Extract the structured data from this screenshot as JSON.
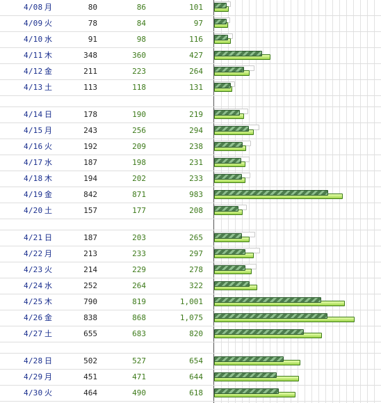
{
  "groups": [
    [
      {
        "date": "4/08",
        "dow": "月",
        "v1": "80",
        "v2": "86",
        "v3": "101"
      },
      {
        "date": "4/09",
        "dow": "火",
        "v1": "78",
        "v2": "84",
        "v3": "97"
      },
      {
        "date": "4/10",
        "dow": "水",
        "v1": "91",
        "v2": "98",
        "v3": "116"
      },
      {
        "date": "4/11",
        "dow": "木",
        "v1": "348",
        "v2": "360",
        "v3": "427"
      },
      {
        "date": "4/12",
        "dow": "金",
        "v1": "211",
        "v2": "223",
        "v3": "264"
      },
      {
        "date": "4/13",
        "dow": "土",
        "v1": "113",
        "v2": "118",
        "v3": "131"
      }
    ],
    [
      {
        "date": "4/14",
        "dow": "日",
        "v1": "178",
        "v2": "190",
        "v3": "219"
      },
      {
        "date": "4/15",
        "dow": "月",
        "v1": "243",
        "v2": "256",
        "v3": "294"
      },
      {
        "date": "4/16",
        "dow": "火",
        "v1": "192",
        "v2": "209",
        "v3": "238"
      },
      {
        "date": "4/17",
        "dow": "水",
        "v1": "187",
        "v2": "198",
        "v3": "231"
      },
      {
        "date": "4/18",
        "dow": "木",
        "v1": "194",
        "v2": "202",
        "v3": "233"
      },
      {
        "date": "4/19",
        "dow": "金",
        "v1": "842",
        "v2": "871",
        "v3": "983"
      },
      {
        "date": "4/20",
        "dow": "土",
        "v1": "157",
        "v2": "177",
        "v3": "208"
      }
    ],
    [
      {
        "date": "4/21",
        "dow": "日",
        "v1": "187",
        "v2": "203",
        "v3": "265"
      },
      {
        "date": "4/22",
        "dow": "月",
        "v1": "213",
        "v2": "233",
        "v3": "297"
      },
      {
        "date": "4/23",
        "dow": "火",
        "v1": "214",
        "v2": "229",
        "v3": "278"
      },
      {
        "date": "4/24",
        "dow": "水",
        "v1": "252",
        "v2": "264",
        "v3": "322"
      },
      {
        "date": "4/25",
        "dow": "木",
        "v1": "790",
        "v2": "819",
        "v3": "1,001"
      },
      {
        "date": "4/26",
        "dow": "金",
        "v1": "838",
        "v2": "868",
        "v3": "1,075"
      },
      {
        "date": "4/27",
        "dow": "土",
        "v1": "655",
        "v2": "683",
        "v3": "820"
      }
    ],
    [
      {
        "date": "4/28",
        "dow": "日",
        "v1": "502",
        "v2": "527",
        "v3": "654"
      },
      {
        "date": "4/29",
        "dow": "月",
        "v1": "451",
        "v2": "471",
        "v3": "644"
      },
      {
        "date": "4/30",
        "dow": "火",
        "v1": "464",
        "v2": "490",
        "v3": "618"
      }
    ]
  ],
  "colors": {
    "date_text": "#1a2f8e",
    "value_green": "#3d7a1a",
    "bar_dark": "#4e7e4e",
    "bar_light": "#9fd64a"
  }
}
